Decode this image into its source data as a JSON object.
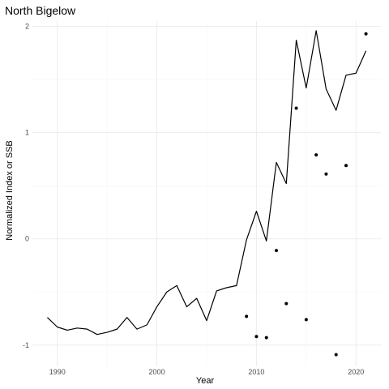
{
  "chart_data": {
    "type": "line",
    "title": "North Bigelow",
    "xlabel": "Year",
    "ylabel": "Normalized Index or SSB",
    "xlim": [
      1987.5,
      2022.5
    ],
    "ylim": [
      -1.2,
      2.05
    ],
    "x_ticks": [
      1990,
      2000,
      2010,
      2020
    ],
    "y_ticks": [
      -1,
      0,
      1,
      2
    ],
    "grid": true,
    "series": [
      {
        "type": "line",
        "x": [
          1989,
          1990,
          1991,
          1992,
          1993,
          1994,
          1995,
          1996,
          1997,
          1998,
          1999,
          2000,
          2001,
          2002,
          2003,
          2004,
          2005,
          2006,
          2007,
          2008,
          2009,
          2010,
          2011,
          2012,
          2013,
          2014,
          2015,
          2016,
          2017,
          2018,
          2019,
          2020,
          2021
        ],
        "values": [
          -0.74,
          -0.83,
          -0.86,
          -0.84,
          -0.85,
          -0.9,
          -0.88,
          -0.85,
          -0.74,
          -0.85,
          -0.81,
          -0.64,
          -0.5,
          -0.44,
          -0.64,
          -0.56,
          -0.77,
          -0.49,
          -0.46,
          -0.44,
          -0.01,
          0.26,
          -0.02,
          0.72,
          0.52,
          1.87,
          1.42,
          1.96,
          1.41,
          1.21,
          1.54,
          1.56,
          1.77
        ],
        "color": "#000000"
      },
      {
        "type": "scatter",
        "x": [
          2009,
          2010,
          2011,
          2012,
          2013,
          2014,
          2015,
          2016,
          2017,
          2018,
          2019,
          2021
        ],
        "values": [
          -0.73,
          -0.92,
          -0.93,
          -0.11,
          -0.61,
          1.23,
          -0.76,
          0.79,
          0.61,
          -1.09,
          0.69,
          1.93
        ],
        "color": "#000000"
      }
    ]
  }
}
